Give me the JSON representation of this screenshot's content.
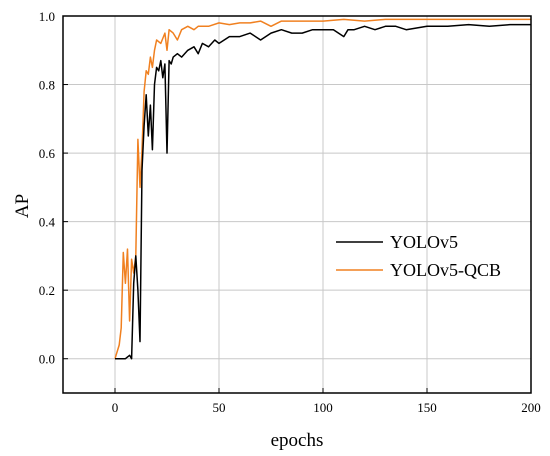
{
  "chart_data": {
    "type": "line",
    "title": "",
    "xlabel": "epochs",
    "ylabel": "AP",
    "xlim": [
      -25,
      200
    ],
    "ylim": [
      -0.1,
      1.0
    ],
    "xticks": [
      0,
      50,
      100,
      150,
      200
    ],
    "yticks": [
      0.0,
      0.2,
      0.4,
      0.6,
      0.8,
      1.0
    ],
    "xtick_labels": [
      "0",
      "50",
      "100",
      "150",
      "200"
    ],
    "ytick_labels": [
      "0.0",
      "0.2",
      "0.4",
      "0.6",
      "0.8",
      "1.0"
    ],
    "grid": true,
    "legend_position": "center-right",
    "series": [
      {
        "name": "YOLOv5",
        "color": "#000000",
        "x": [
          0,
          5,
          7,
          8,
          9,
          10,
          11,
          12,
          13,
          14,
          15,
          16,
          17,
          18,
          19,
          20,
          21,
          22,
          23,
          24,
          25,
          26,
          27,
          28,
          30,
          32,
          35,
          38,
          40,
          42,
          45,
          48,
          50,
          55,
          60,
          65,
          70,
          75,
          80,
          85,
          90,
          95,
          100,
          105,
          110,
          112,
          115,
          120,
          125,
          130,
          135,
          140,
          150,
          160,
          170,
          180,
          190,
          200
        ],
        "y": [
          0.0,
          0.0,
          0.01,
          0.0,
          0.22,
          0.3,
          0.2,
          0.05,
          0.55,
          0.68,
          0.77,
          0.65,
          0.74,
          0.61,
          0.8,
          0.85,
          0.84,
          0.87,
          0.82,
          0.86,
          0.6,
          0.87,
          0.86,
          0.88,
          0.89,
          0.88,
          0.9,
          0.91,
          0.89,
          0.92,
          0.91,
          0.93,
          0.92,
          0.94,
          0.94,
          0.95,
          0.93,
          0.95,
          0.96,
          0.95,
          0.95,
          0.96,
          0.96,
          0.96,
          0.94,
          0.96,
          0.96,
          0.97,
          0.96,
          0.97,
          0.97,
          0.96,
          0.97,
          0.97,
          0.975,
          0.97,
          0.975,
          0.975
        ]
      },
      {
        "name": "YOLOv5-QCB",
        "color": "#f08020",
        "x": [
          0,
          2,
          3,
          4,
          5,
          6,
          7,
          8,
          9,
          10,
          11,
          12,
          13,
          14,
          15,
          16,
          17,
          18,
          19,
          20,
          22,
          24,
          25,
          26,
          28,
          30,
          32,
          35,
          38,
          40,
          45,
          50,
          55,
          60,
          65,
          70,
          75,
          80,
          90,
          100,
          110,
          120,
          130,
          140,
          150,
          160,
          170,
          180,
          190,
          200
        ],
        "y": [
          0.0,
          0.04,
          0.09,
          0.31,
          0.22,
          0.32,
          0.11,
          0.29,
          0.25,
          0.3,
          0.64,
          0.5,
          0.61,
          0.78,
          0.84,
          0.83,
          0.88,
          0.85,
          0.9,
          0.93,
          0.92,
          0.95,
          0.9,
          0.96,
          0.95,
          0.93,
          0.96,
          0.97,
          0.96,
          0.97,
          0.97,
          0.98,
          0.975,
          0.98,
          0.98,
          0.985,
          0.97,
          0.985,
          0.985,
          0.985,
          0.99,
          0.985,
          0.99,
          0.99,
          0.99,
          0.99,
          0.99,
          0.99,
          0.99,
          0.99
        ]
      }
    ]
  }
}
